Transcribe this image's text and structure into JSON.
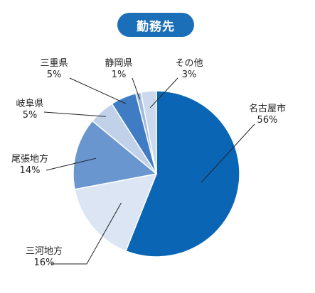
{
  "title": "勤務先",
  "chart_data": {
    "type": "pie",
    "start": "top",
    "direction": "clockwise",
    "slices": [
      {
        "name": "名古屋市",
        "value": 56,
        "label": "56%",
        "color": "#0a66b4"
      },
      {
        "name": "三河地方",
        "value": 16,
        "label": "16%",
        "color": "#dbe5f3"
      },
      {
        "name": "尾張地方",
        "value": 14,
        "label": "14%",
        "color": "#6a96cf"
      },
      {
        "name": "岐阜県",
        "value": 5,
        "label": "5%",
        "color": "#c2d1ea"
      },
      {
        "name": "三重県",
        "value": 5,
        "label": "5%",
        "color": "#3f7cc4"
      },
      {
        "name": "静岡県",
        "value": 1,
        "label": "1%",
        "color": "#9fb9df"
      },
      {
        "name": "その他",
        "value": 3,
        "label": "3%",
        "color": "#cbd8ee"
      }
    ]
  }
}
